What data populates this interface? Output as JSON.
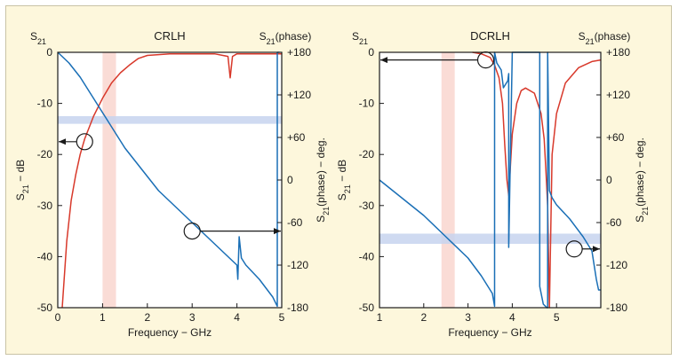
{
  "colors": {
    "background": "#fdf7dc",
    "plot_area": "#ffffff",
    "magnitude": "#d8392b",
    "phase": "#1a6fb6",
    "pink_band": "#f9d6cf",
    "blue_band": "#c7d3ee"
  },
  "chart_data": [
    {
      "type": "line",
      "title": "CRLH",
      "y_left_label_top": "S21",
      "y_right_label_top": "S21(phase)",
      "xlabel": "Frequency − GHz",
      "ylabel_left": "S21 − dB",
      "ylabel_right": "S21(phase) − deg.",
      "xlim": [
        0,
        5
      ],
      "ylim_left": [
        -50,
        0
      ],
      "ylim_right": [
        -180,
        180
      ],
      "x_ticks": [
        "0",
        "1",
        "2",
        "3",
        "4",
        "5"
      ],
      "y_left_ticks": [
        "0",
        "-10",
        "-20",
        "-30",
        "-40",
        "-50"
      ],
      "y_right_ticks": [
        "+180",
        "+120",
        "+60",
        "0",
        "-60",
        "-120",
        "-180"
      ],
      "pink_band_x": [
        1.0,
        1.3
      ],
      "blue_band_y_db": [
        -12.5,
        -14
      ],
      "series": [
        {
          "name": "S21 magnitude (dB)",
          "axis": "left",
          "color": "#d8392b",
          "x": [
            0.1,
            0.2,
            0.3,
            0.4,
            0.5,
            0.6,
            0.8,
            1.0,
            1.2,
            1.4,
            1.6,
            1.8,
            2.0,
            2.5,
            3.0,
            3.5,
            3.8,
            3.85,
            3.9,
            4.0,
            4.5,
            5.0
          ],
          "y": [
            -50,
            -37,
            -29,
            -24,
            -20,
            -17,
            -12.5,
            -9,
            -6,
            -4,
            -2.5,
            -1.2,
            -0.6,
            -0.3,
            -0.3,
            -0.3,
            -0.8,
            -5,
            -0.8,
            -0.3,
            -0.3,
            -0.3
          ]
        },
        {
          "name": "S21 phase (deg)",
          "axis": "right",
          "color": "#1a6fb6",
          "x": [
            0.0,
            0.25,
            0.5,
            0.75,
            1.0,
            1.25,
            1.5,
            1.75,
            2.0,
            2.25,
            2.5,
            2.75,
            3.0,
            3.25,
            3.5,
            3.75,
            4.0,
            4.02,
            4.05,
            4.1,
            4.2,
            4.5,
            4.8,
            4.9,
            4.9,
            4.95
          ],
          "y": [
            180,
            165,
            145,
            120,
            95,
            70,
            45,
            25,
            5,
            -15,
            -30,
            -45,
            -60,
            -75,
            -90,
            -105,
            -120,
            -140,
            -80,
            -110,
            -120,
            -140,
            -165,
            -178,
            180,
            180
          ]
        }
      ],
      "annotations": [
        {
          "x": 0.6,
          "y_db": -17.5,
          "arrow_to_x": 0.0,
          "meaning": "magnitude curve → left axis"
        },
        {
          "x": 3.0,
          "y_db": -35,
          "arrow_to_x": 5.0,
          "meaning": "phase curve → right axis"
        }
      ]
    },
    {
      "type": "line",
      "title": "DCRLH",
      "y_left_label_top": "S21",
      "y_right_label_top": "S21(phase)",
      "xlabel": "Frequency − GHz",
      "ylabel_left": "S21 − dB",
      "ylabel_right": "S21(phase) − deg.",
      "xlim": [
        1,
        6
      ],
      "ylim_left": [
        -50,
        0
      ],
      "ylim_right": [
        -180,
        180
      ],
      "x_ticks": [
        "1",
        "2",
        "3",
        "4",
        "5"
      ],
      "y_left_ticks": [
        "0",
        "-10",
        "-20",
        "-30",
        "-40",
        "-50"
      ],
      "y_right_ticks": [
        "+180",
        "+120",
        "+60",
        "0",
        "-60",
        "-120",
        "-180"
      ],
      "pink_band_x": [
        2.4,
        2.7
      ],
      "blue_band_y_db": [
        -35.5,
        -37.5
      ],
      "series": [
        {
          "name": "S21 magnitude (dB)",
          "axis": "left",
          "color": "#d8392b",
          "x": [
            3.1,
            3.3,
            3.5,
            3.6,
            3.7,
            3.78,
            3.83,
            3.88,
            3.92,
            3.96,
            4.0,
            4.1,
            4.2,
            4.3,
            4.5,
            4.65,
            4.72,
            4.76,
            4.8,
            4.84,
            4.9,
            5.0,
            5.2,
            5.5,
            5.8,
            6.0
          ],
          "y": [
            0,
            -0.3,
            -1,
            -2.5,
            -5,
            -10,
            -18,
            -25,
            -28,
            -22,
            -16,
            -10,
            -7.5,
            -7,
            -8,
            -12,
            -17,
            -23,
            -30,
            -50,
            -20,
            -12,
            -6,
            -3,
            -1.8,
            -1.5
          ]
        },
        {
          "name": "S21 phase (deg)",
          "axis": "right",
          "color": "#1a6fb6",
          "x": [
            1.0,
            1.5,
            2.0,
            2.5,
            3.0,
            3.3,
            3.55,
            3.6,
            3.6,
            3.65,
            3.75,
            3.8,
            3.9,
            3.92,
            3.92,
            4.0,
            4.3,
            4.62,
            4.62,
            4.7,
            4.75,
            4.78,
            4.8,
            4.8,
            4.84,
            4.9,
            5.0,
            5.3,
            5.6,
            5.8,
            5.9,
            5.95,
            6.0
          ],
          "y": [
            0,
            -25,
            -50,
            -80,
            -110,
            -135,
            -160,
            -178,
            180,
            165,
            155,
            130,
            140,
            150,
            -95,
            180,
            180,
            180,
            -150,
            -175,
            -178,
            -180,
            -180,
            180,
            -15,
            -25,
            -35,
            -55,
            -80,
            -100,
            -140,
            -155,
            -155
          ]
        }
      ],
      "annotations": [
        {
          "x": 3.4,
          "y_db": -1.5,
          "arrow_to_x": 1.0,
          "meaning": "magnitude curve → left axis"
        },
        {
          "x": 5.4,
          "y_db": -38.5,
          "arrow_to_x": 6.0,
          "meaning": "phase curve → right axis"
        }
      ]
    }
  ]
}
